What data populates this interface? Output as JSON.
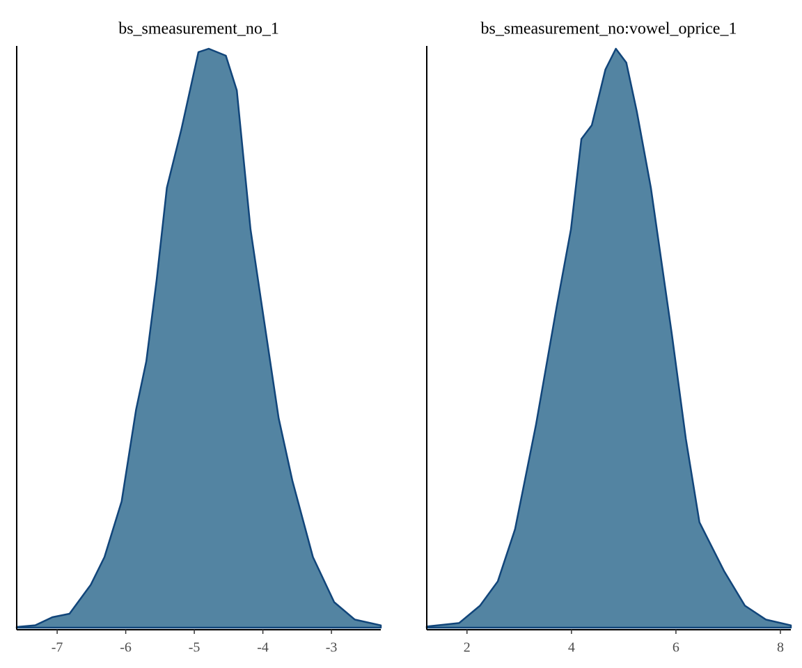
{
  "chart_data": [
    {
      "type": "area",
      "title": "bs_smeasurement_no_1",
      "x": [
        -7.59,
        -7.32,
        -7.07,
        -6.82,
        -6.51,
        -6.31,
        -6.06,
        -5.85,
        -5.7,
        -5.55,
        -5.4,
        -5.19,
        -4.94,
        -4.79,
        -4.54,
        -4.38,
        -4.18,
        -4.03,
        -3.77,
        -3.57,
        -3.27,
        -2.96,
        -2.66,
        -2.28
      ],
      "values": [
        0.0006,
        0.002,
        0.009,
        0.012,
        0.037,
        0.061,
        0.109,
        0.188,
        0.23,
        0.3,
        0.38,
        0.43,
        0.497,
        0.5,
        0.494,
        0.464,
        0.344,
        0.284,
        0.181,
        0.127,
        0.061,
        0.022,
        0.007,
        0.002
      ],
      "xlim": [
        -7.59,
        -2.28
      ],
      "xticks": [
        -7,
        -6,
        -5,
        -4,
        -3
      ],
      "ylim": [
        0,
        0.5
      ],
      "color": "#11457a",
      "fill": "#5384a2"
    },
    {
      "type": "area",
      "title": "bs_smeasurement_no:vowel_oprice_1",
      "x": [
        1.23,
        1.85,
        2.25,
        2.59,
        2.92,
        3.32,
        3.72,
        3.99,
        4.19,
        4.39,
        4.65,
        4.85,
        5.05,
        5.25,
        5.52,
        5.92,
        6.19,
        6.45,
        6.92,
        7.32,
        7.72,
        8.2
      ],
      "values": [
        0.001,
        0.004,
        0.019,
        0.04,
        0.085,
        0.175,
        0.278,
        0.344,
        0.422,
        0.434,
        0.482,
        0.5,
        0.488,
        0.446,
        0.38,
        0.254,
        0.163,
        0.091,
        0.049,
        0.019,
        0.007,
        0.002
      ],
      "xlim": [
        1.23,
        8.2
      ],
      "xticks": [
        2,
        4,
        6,
        8
      ],
      "ylim": [
        0,
        0.5
      ],
      "color": "#11457a",
      "fill": "#5384a2"
    }
  ]
}
